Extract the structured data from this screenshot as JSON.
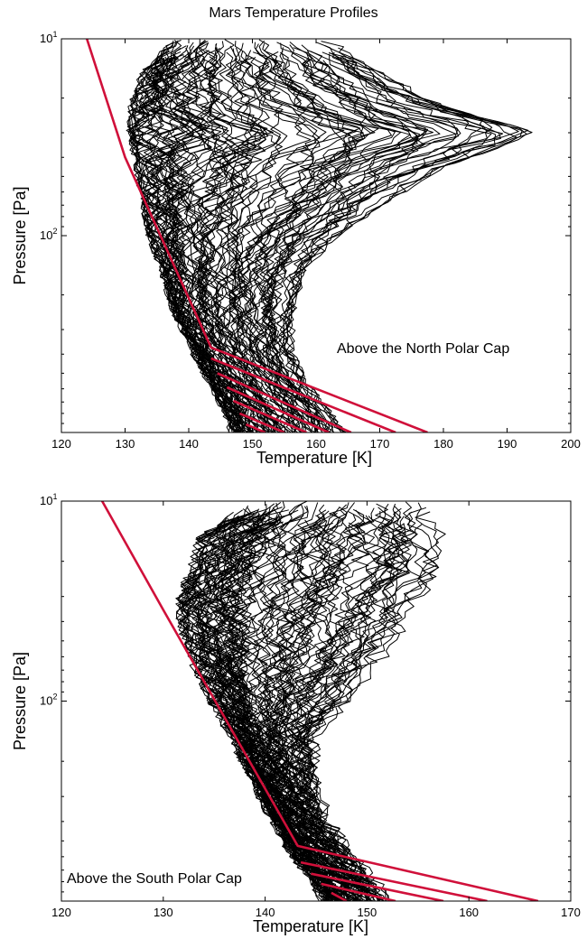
{
  "figure_title": "Mars Temperature Profiles",
  "colors": {
    "profile": "#000000",
    "fit": "#d0103a"
  },
  "chart_data": [
    {
      "type": "line",
      "panel": "north",
      "xlabel": "Temperature [K]",
      "ylabel": "Pressure [Pa]",
      "xlim": [
        120,
        200
      ],
      "ylim": [
        1000,
        10
      ],
      "yscale": "log",
      "xticks": [
        120,
        130,
        140,
        150,
        160,
        170,
        180,
        190,
        200
      ],
      "ytick_labels": [
        {
          "value": 10,
          "base": "10",
          "exp": "1"
        },
        {
          "value": 100,
          "base": "10",
          "exp": "2"
        }
      ],
      "annotation": "Above the North Polar Cap",
      "profile_count": 110,
      "profile_envelope": {
        "p": [
          10,
          15,
          22,
          30,
          45,
          70,
          100,
          150,
          250,
          400,
          600,
          800,
          1000
        ],
        "t_cold": [
          138,
          133,
          131,
          131,
          132,
          133,
          134,
          136,
          138,
          141,
          144,
          146,
          147
        ],
        "t_warm": [
          162,
          170,
          180,
          194,
          180,
          170,
          163,
          158,
          156,
          156,
          159,
          162,
          164
        ]
      },
      "fit_lines": [
        {
          "t": [
            124,
            130,
            143.5,
            177.5
          ],
          "p": [
            10,
            40,
            370,
            1000
          ]
        },
        {
          "t": [
            143.5,
            172.5
          ],
          "p": [
            420,
            1000
          ]
        },
        {
          "t": [
            144.5,
            165.5
          ],
          "p": [
            500,
            1000
          ]
        },
        {
          "t": [
            146,
            162
          ],
          "p": [
            590,
            1000
          ]
        },
        {
          "t": [
            147,
            158.5
          ],
          "p": [
            690,
            1000
          ]
        },
        {
          "t": [
            148,
            155
          ],
          "p": [
            800,
            1000
          ]
        },
        {
          "t": [
            149,
            152
          ],
          "p": [
            910,
            1000
          ]
        }
      ]
    },
    {
      "type": "line",
      "panel": "south",
      "xlabel": "Temperature [K]",
      "ylabel": "Pressure [Pa]",
      "xlim": [
        120,
        170
      ],
      "ylim": [
        1000,
        10
      ],
      "yscale": "log",
      "xticks": [
        120,
        130,
        140,
        150,
        160,
        170
      ],
      "ytick_labels": [
        {
          "value": 10,
          "base": "10",
          "exp": "1"
        },
        {
          "value": 100,
          "base": "10",
          "exp": "2"
        }
      ],
      "annotation": "Above the South Polar Cap",
      "profile_count": 110,
      "profile_envelope": {
        "p": [
          10,
          15,
          22,
          30,
          40,
          60,
          100,
          150,
          250,
          400,
          600,
          800,
          1000
        ],
        "t_cold": [
          139,
          134,
          133,
          132,
          132,
          133,
          135,
          137,
          139,
          141,
          143,
          145,
          146
        ],
        "t_warm": [
          156,
          157,
          157,
          155,
          154,
          152,
          148,
          145,
          145,
          146,
          149,
          151,
          152
        ]
      },
      "fit_lines": [
        {
          "t": [
            124,
            130,
            143.2,
            166.8
          ],
          "p": [
            10,
            35,
            530,
            1000
          ]
        },
        {
          "t": [
            143.5,
            161.8
          ],
          "p": [
            640,
            1000
          ]
        },
        {
          "t": [
            144.5,
            157.5
          ],
          "p": [
            730,
            1000
          ]
        },
        {
          "t": [
            145.5,
            152.8
          ],
          "p": [
            820,
            1000
          ]
        },
        {
          "t": [
            146.5,
            148
          ],
          "p": [
            910,
            1000
          ]
        }
      ]
    }
  ]
}
